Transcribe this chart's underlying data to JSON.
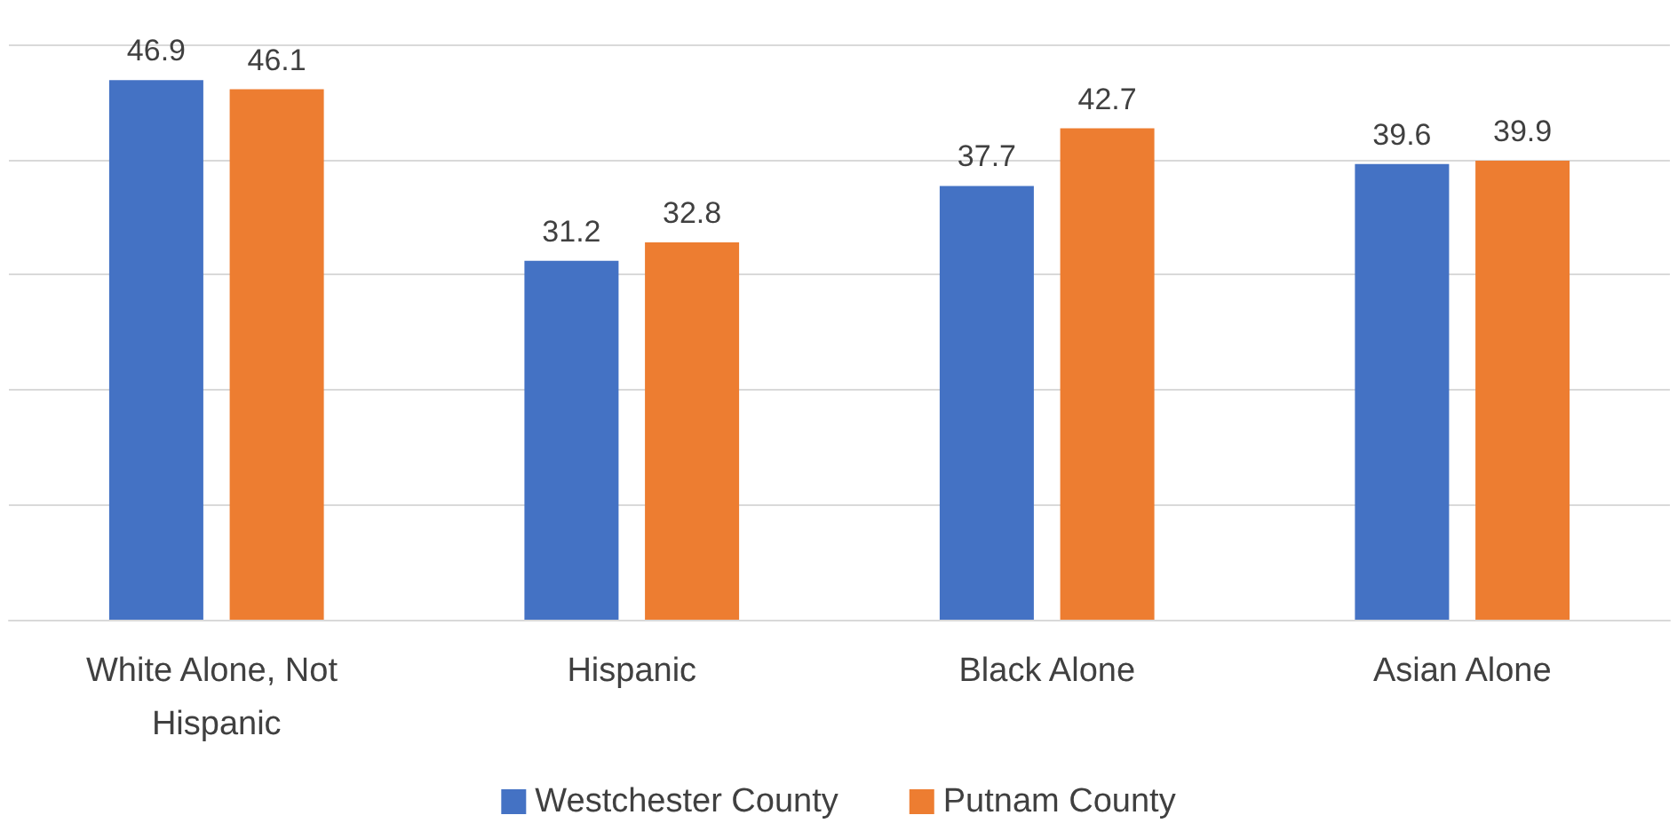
{
  "chart_data": {
    "type": "bar",
    "categories": [
      "White Alone, Not Hispanic",
      "Hispanic",
      "Black Alone",
      "Asian Alone"
    ],
    "series": [
      {
        "name": "Westchester County",
        "color": "#4472c4",
        "values": [
          46.9,
          31.2,
          37.7,
          39.6
        ]
      },
      {
        "name": "Putnam County",
        "color": "#ed7d31",
        "values": [
          46.1,
          32.8,
          42.7,
          39.9
        ]
      }
    ],
    "ylim": [
      0,
      50
    ],
    "yticks": [
      {
        "value": 0,
        "label": null
      },
      {
        "value": 10,
        "label": null
      },
      {
        "value": 20,
        "label": null
      },
      {
        "value": 30,
        "label": null
      },
      {
        "value": 40,
        "label": null
      },
      {
        "value": 50,
        "label": null
      }
    ],
    "grid": "y",
    "tick_labels": "x",
    "data_labels": true,
    "legend": "bottom"
  }
}
